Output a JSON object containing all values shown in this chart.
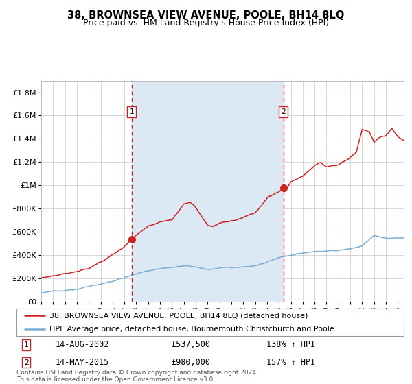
{
  "title": "38, BROWNSEA VIEW AVENUE, POOLE, BH14 8LQ",
  "subtitle": "Price paid vs. HM Land Registry's House Price Index (HPI)",
  "legend_line1": "38, BROWNSEA VIEW AVENUE, POOLE, BH14 8LQ (detached house)",
  "legend_line2": "HPI: Average price, detached house, Bournemouth Christchurch and Poole",
  "footnote": "Contains HM Land Registry data © Crown copyright and database right 2024.\nThis data is licensed under the Open Government Licence v3.0.",
  "sale1_date": "14-AUG-2002",
  "sale1_price": "£537,500",
  "sale1_hpi": "138% ↑ HPI",
  "sale1_price_val": 537500,
  "sale1_year": 2002.62,
  "sale2_date": "14-MAY-2015",
  "sale2_price": "£980,000",
  "sale2_hpi": "157% ↑ HPI",
  "sale2_price_val": 980000,
  "sale2_year": 2015.37,
  "xmin": 1995.0,
  "xmax": 2025.5,
  "ymin": 0,
  "ymax": 1900000,
  "hpi_color": "#7aadd4",
  "price_color": "#cc2222",
  "plot_bg": "#ffffff",
  "grid_color": "#bbbbbb",
  "shade_color": "#dce9f5",
  "vline_color": "#cc2222",
  "box_ec": "#cc2222"
}
